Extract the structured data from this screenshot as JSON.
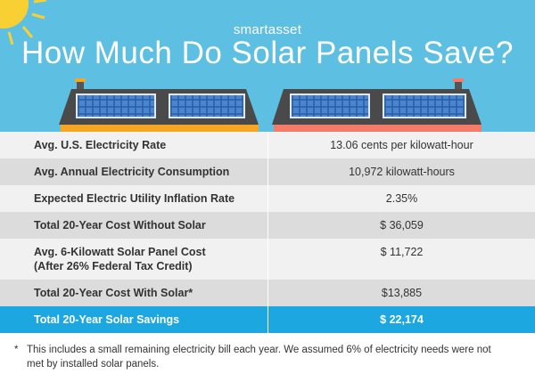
{
  "header": {
    "brand": "smartasset",
    "title": "How Much Do Solar Panels Save?"
  },
  "table": {
    "rows": [
      {
        "label": [
          "Avg. U.S. Electricity Rate"
        ],
        "value": "13.06 cents per kilowatt-hour"
      },
      {
        "label": [
          "Avg. Annual Electricity Consumption"
        ],
        "value": "10,972 kilowatt-hours"
      },
      {
        "label": [
          "Expected Electric Utility Inflation Rate"
        ],
        "value": "2.35%"
      },
      {
        "label": [
          "Total 20-Year Cost Without Solar"
        ],
        "value": "$ 36,059"
      },
      {
        "label": [
          "Avg. 6-Kilowatt Solar Panel Cost",
          "(After 26% Federal Tax Credit)"
        ],
        "value": "$ 11,722"
      },
      {
        "label": [
          "Total 20-Year Cost With Solar*"
        ],
        "value": "$13,885"
      }
    ],
    "total": {
      "label": [
        "Total 20-Year Solar Savings"
      ],
      "value": "$ 22,174"
    }
  },
  "footnote": {
    "marker": "*",
    "lines": [
      "This includes a small remaining electricity bill each year. We assumed 6% of electricity needs were not",
      "met by installed solar panels."
    ]
  }
}
